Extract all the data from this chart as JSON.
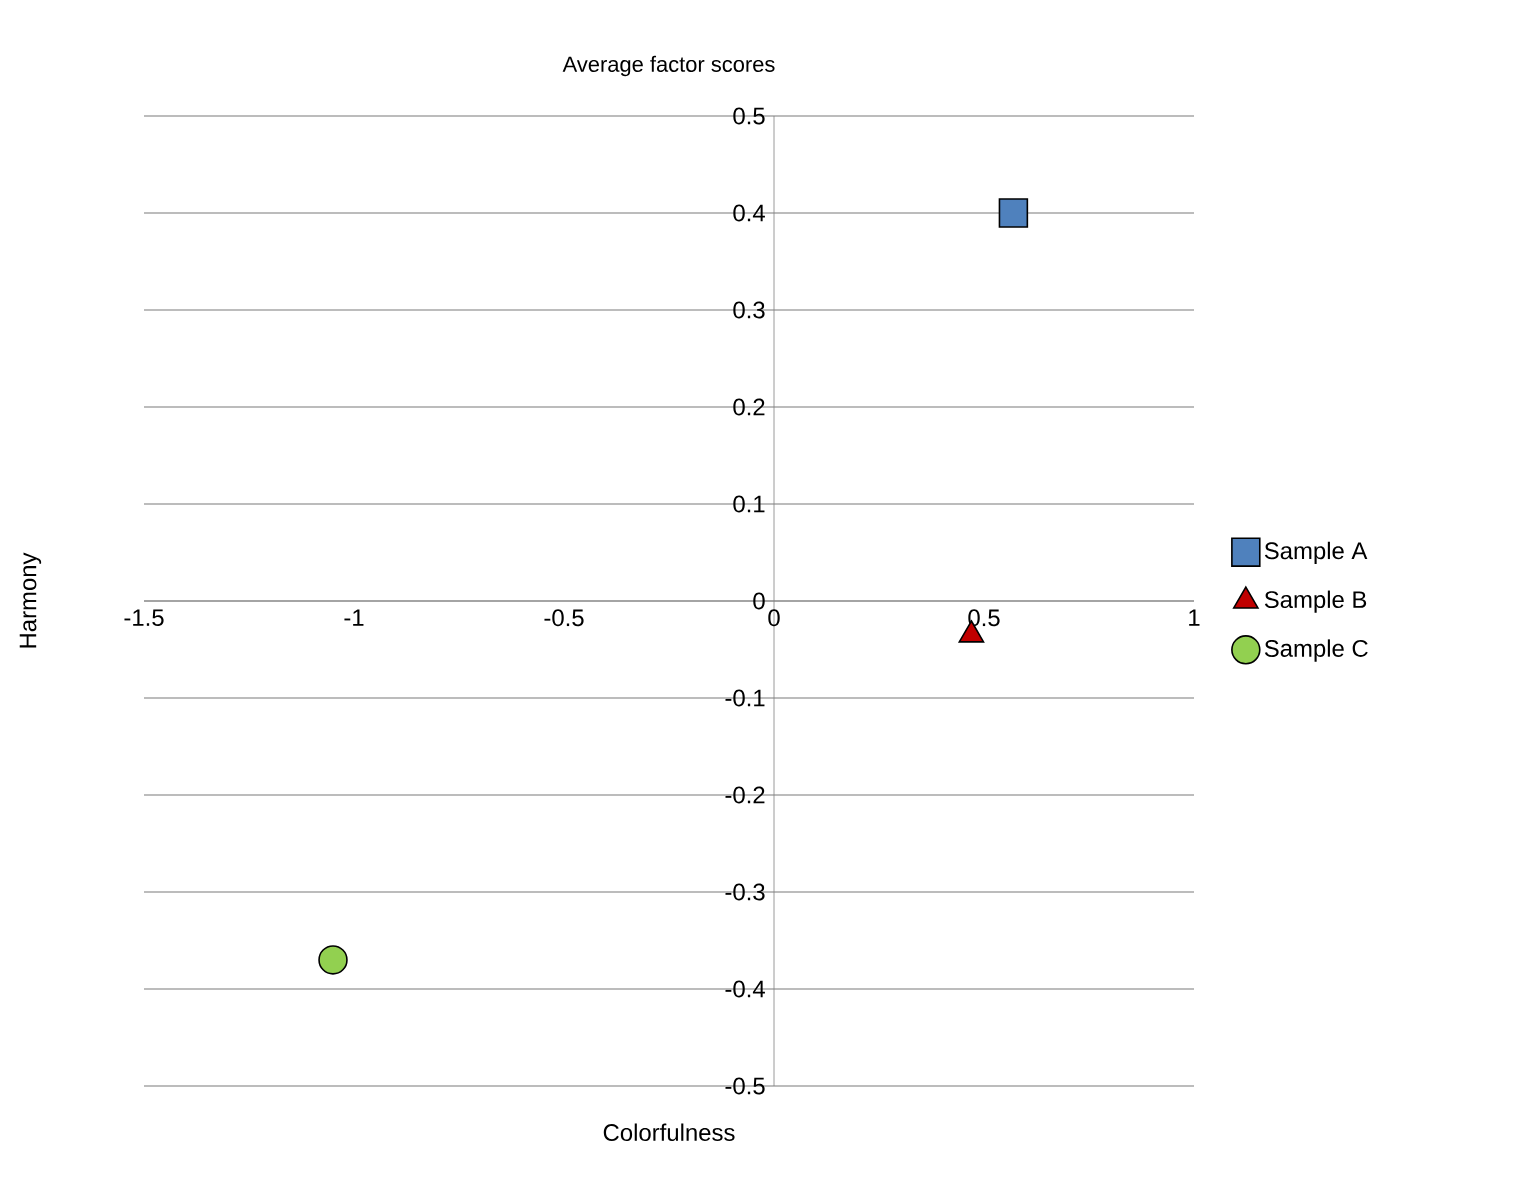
{
  "chart_data": {
    "type": "scatter",
    "title": "Average factor scores",
    "xlabel": "Colorfulness",
    "ylabel": "Harmony",
    "xlim": [
      -1.5,
      1
    ],
    "ylim": [
      -0.5,
      0.5
    ],
    "xticks": [
      -1.5,
      -1,
      -0.5,
      0,
      0.5,
      1
    ],
    "yticks": [
      -0.5,
      -0.4,
      -0.3,
      -0.2,
      -0.1,
      0,
      0.1,
      0.2,
      0.3,
      0.4,
      0.5
    ],
    "grid": "y",
    "legend": "right",
    "series": [
      {
        "name": "Sample A",
        "color": "#4f81bd",
        "marker": "square",
        "x": [
          0.57
        ],
        "values": [
          0.4
        ]
      },
      {
        "name": "Sample B",
        "color": "#c00000",
        "marker": "triangle",
        "x": [
          0.47
        ],
        "values": [
          -0.035
        ]
      },
      {
        "name": "Sample C",
        "color": "#92d050",
        "marker": "circle",
        "x": [
          -1.05
        ],
        "values": [
          -0.37
        ]
      }
    ]
  }
}
